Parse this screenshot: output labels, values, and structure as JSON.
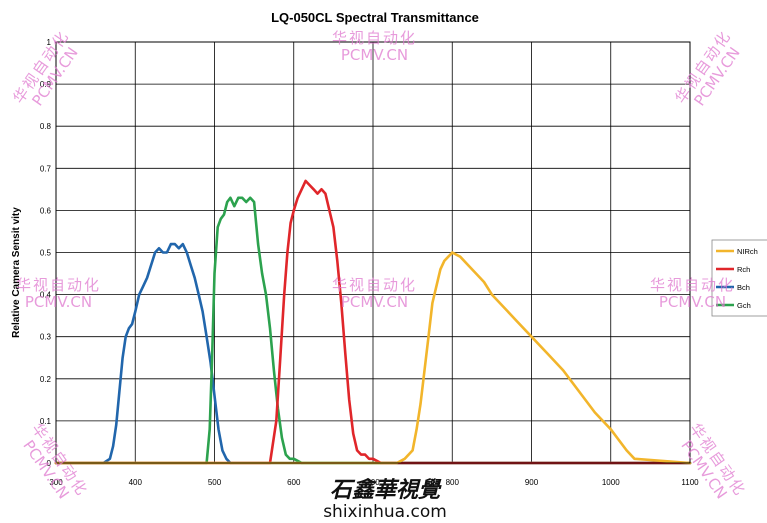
{
  "chart_data": {
    "type": "line",
    "title": "LQ-050CL  Spectral Transmittance",
    "xlabel": "",
    "ylabel": "Relative Camera Sensit vity",
    "xlim": [
      300,
      1100
    ],
    "ylim": [
      0,
      1
    ],
    "xticks": [
      300,
      400,
      500,
      600,
      700,
      800,
      900,
      1000,
      1100
    ],
    "yticks": [
      0,
      0.1,
      0.2,
      0.3,
      0.4,
      0.5,
      0.6,
      0.7,
      0.8,
      0.9,
      1
    ],
    "grid": true,
    "legend_position": "right",
    "series": [
      {
        "name": "Bch",
        "color": "#2166ac",
        "x": [
          300,
          360,
          368,
          372,
          376,
          380,
          384,
          388,
          392,
          396,
          400,
          405,
          410,
          415,
          420,
          425,
          430,
          435,
          440,
          445,
          450,
          455,
          460,
          465,
          470,
          475,
          480,
          485,
          490,
          495,
          500,
          505,
          510,
          515,
          520,
          1100
        ],
        "y": [
          0.0,
          0.0,
          0.01,
          0.04,
          0.09,
          0.17,
          0.25,
          0.3,
          0.32,
          0.33,
          0.36,
          0.4,
          0.42,
          0.44,
          0.47,
          0.5,
          0.51,
          0.5,
          0.5,
          0.52,
          0.52,
          0.51,
          0.52,
          0.5,
          0.47,
          0.44,
          0.4,
          0.36,
          0.3,
          0.24,
          0.16,
          0.08,
          0.03,
          0.01,
          0.0,
          0.0
        ]
      },
      {
        "name": "Gch",
        "color": "#2ca24e",
        "x": [
          300,
          490,
          494,
          497,
          500,
          504,
          508,
          512,
          516,
          520,
          525,
          530,
          535,
          540,
          545,
          550,
          555,
          560,
          565,
          570,
          575,
          580,
          585,
          590,
          595,
          600,
          610,
          1100
        ],
        "y": [
          0.0,
          0.0,
          0.08,
          0.25,
          0.45,
          0.56,
          0.58,
          0.59,
          0.62,
          0.63,
          0.61,
          0.63,
          0.63,
          0.62,
          0.63,
          0.62,
          0.52,
          0.45,
          0.4,
          0.32,
          0.22,
          0.13,
          0.06,
          0.02,
          0.01,
          0.01,
          0.0,
          0.0
        ]
      },
      {
        "name": "Rch",
        "color": "#e0262a",
        "x": [
          300,
          570,
          578,
          583,
          588,
          592,
          596,
          600,
          605,
          610,
          615,
          620,
          625,
          630,
          635,
          640,
          645,
          650,
          655,
          660,
          665,
          670,
          675,
          680,
          685,
          690,
          695,
          700,
          710,
          720,
          1100
        ],
        "y": [
          0.0,
          0.0,
          0.1,
          0.25,
          0.4,
          0.5,
          0.57,
          0.6,
          0.63,
          0.65,
          0.67,
          0.66,
          0.65,
          0.64,
          0.65,
          0.64,
          0.6,
          0.56,
          0.48,
          0.38,
          0.26,
          0.15,
          0.07,
          0.03,
          0.02,
          0.02,
          0.01,
          0.01,
          0.0,
          0.0,
          0.0
        ]
      },
      {
        "name": "NIRch",
        "color": "#f2b52b",
        "x": [
          300,
          730,
          740,
          750,
          755,
          760,
          765,
          770,
          775,
          780,
          785,
          790,
          795,
          800,
          810,
          820,
          830,
          840,
          850,
          860,
          870,
          880,
          900,
          920,
          940,
          960,
          980,
          1000,
          1020,
          1030,
          1100
        ],
        "y": [
          0.0,
          0.0,
          0.01,
          0.03,
          0.08,
          0.14,
          0.22,
          0.3,
          0.38,
          0.42,
          0.46,
          0.48,
          0.49,
          0.5,
          0.49,
          0.47,
          0.45,
          0.43,
          0.4,
          0.38,
          0.36,
          0.34,
          0.3,
          0.26,
          0.22,
          0.17,
          0.12,
          0.08,
          0.03,
          0.01,
          0.0
        ]
      }
    ]
  },
  "watermark": {
    "chinese": "华视自动化",
    "site": "PCMV.CN"
  },
  "credit": {
    "signature": "石鑫華視覺",
    "site": "shixinhua.com"
  }
}
